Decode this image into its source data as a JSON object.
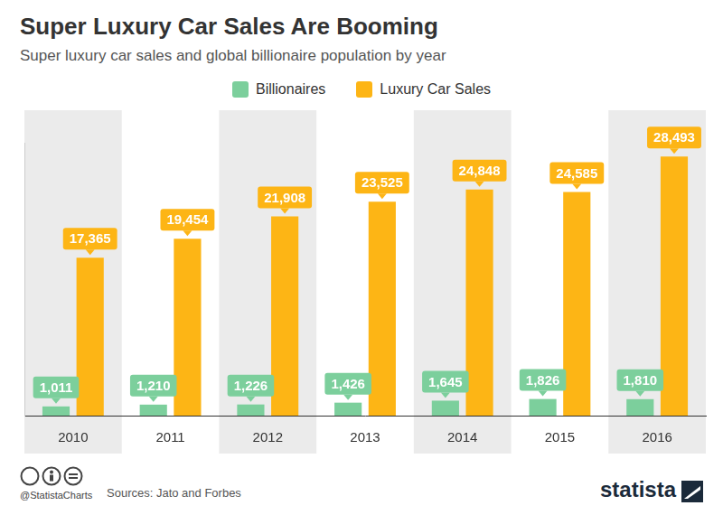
{
  "chart_data": {
    "type": "bar",
    "title": "Super Luxury Car Sales Are Booming",
    "subtitle": "Super luxury car sales and global billionaire population by year",
    "categories": [
      "2010",
      "2011",
      "2012",
      "2013",
      "2014",
      "2015",
      "2016"
    ],
    "series": [
      {
        "name": "Billionaires",
        "color": "#7ccf9c",
        "values": [
          1011,
          1210,
          1226,
          1426,
          1645,
          1826,
          1810
        ],
        "value_labels": [
          "1,011",
          "1,210",
          "1,226",
          "1,426",
          "1,645",
          "1,826",
          "1,810"
        ]
      },
      {
        "name": "Luxury Car Sales",
        "color": "#fdb515",
        "values": [
          17365,
          19454,
          21908,
          23525,
          24848,
          24585,
          28493
        ],
        "value_labels": [
          "17,365",
          "19,454",
          "21,908",
          "23,525",
          "24,848",
          "24,585",
          "28,493"
        ]
      }
    ],
    "ylim": [
      0,
      30000
    ],
    "yticks": [],
    "grid": false,
    "legend": "top",
    "data_labels": true,
    "tick_labels": "x",
    "sources": "Sources: Jato and Forbes",
    "credit": "@StatistaCharts",
    "brand": "statista"
  }
}
